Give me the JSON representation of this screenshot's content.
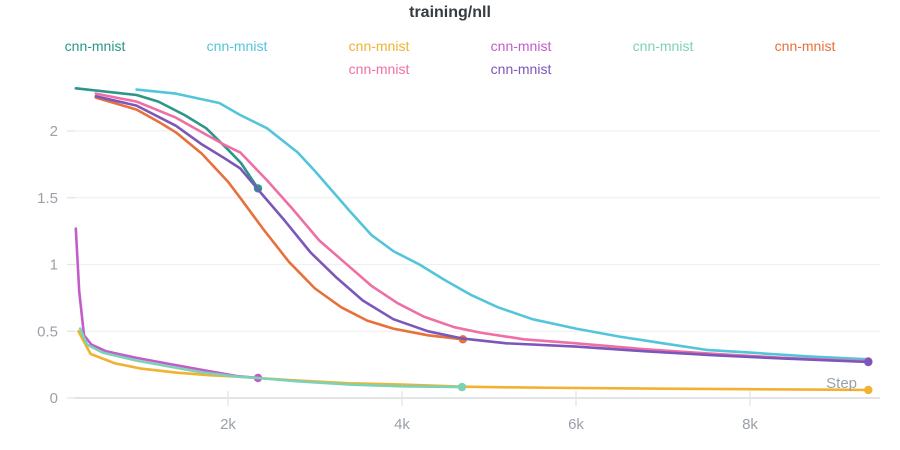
{
  "title": "training/nll",
  "step_axis_label": "Step",
  "colors": {
    "background": "#ffffff",
    "title_text": "#363b42",
    "tick_text": "#9aa1a9",
    "gridline": "#f0f0f2",
    "axis_line": "#e3e4e6"
  },
  "chart_data": {
    "type": "line",
    "title": "training/nll",
    "xlabel": "Step",
    "ylabel": "",
    "xlim": [
      0,
      9500
    ],
    "ylim": [
      0,
      2.4
    ],
    "grid": "horizontal-only",
    "legend_position": "top",
    "x_ticks": [
      {
        "step": 2000,
        "label": "2k"
      },
      {
        "step": 4000,
        "label": "4k"
      },
      {
        "step": 6000,
        "label": "6k"
      },
      {
        "step": 8000,
        "label": "8k"
      }
    ],
    "y_ticks": [
      {
        "value": 0,
        "label": "0"
      },
      {
        "value": 0.5,
        "label": "0.5"
      },
      {
        "value": 1,
        "label": "1"
      },
      {
        "value": 1.5,
        "label": "1.5"
      },
      {
        "value": 2,
        "label": "2"
      }
    ],
    "series": [
      {
        "name": "cnn-mnist",
        "color": "#2c9688",
        "end_dot": true,
        "x": [
          250,
          950,
          1200,
          1500,
          1750,
          2000,
          2150,
          2345
        ],
        "y": [
          2.32,
          2.27,
          2.22,
          2.12,
          2.02,
          1.86,
          1.76,
          1.57
        ]
      },
      {
        "name": "cnn-mnist",
        "color": "#53c5da",
        "end_dot": false,
        "x": [
          950,
          1400,
          1900,
          2140,
          2450,
          2800,
          3000,
          3200,
          3400,
          3650,
          3900,
          4200,
          4500,
          4800,
          5100,
          5500,
          6000,
          6500,
          7000,
          7500,
          8000,
          8700,
          9360
        ],
        "y": [
          2.31,
          2.28,
          2.21,
          2.12,
          2.02,
          1.84,
          1.7,
          1.55,
          1.4,
          1.22,
          1.1,
          1.0,
          0.88,
          0.77,
          0.68,
          0.59,
          0.52,
          0.46,
          0.41,
          0.36,
          0.34,
          0.31,
          0.29
        ]
      },
      {
        "name": "cnn-mnist",
        "color": "#f2b130",
        "end_dot": true,
        "x": [
          280,
          420,
          700,
          1000,
          1400,
          1800,
          2100,
          2345,
          2800,
          3400,
          4000,
          4690,
          5200,
          6000,
          7000,
          8000,
          9000,
          9360
        ],
        "y": [
          0.5,
          0.33,
          0.26,
          0.22,
          0.19,
          0.17,
          0.16,
          0.15,
          0.13,
          0.11,
          0.1,
          0.085,
          0.08,
          0.075,
          0.07,
          0.066,
          0.062,
          0.06
        ]
      },
      {
        "name": "cnn-mnist",
        "color": "#c35ccb",
        "end_dot": true,
        "x": [
          250,
          290,
          345,
          430,
          600,
          950,
          1330,
          1710,
          2100,
          2345
        ],
        "y": [
          1.27,
          0.8,
          0.47,
          0.4,
          0.35,
          0.3,
          0.255,
          0.21,
          0.165,
          0.15
        ]
      },
      {
        "name": "cnn-mnist",
        "color": "#7bd2b5",
        "end_dot": true,
        "x": [
          300,
          380,
          560,
          950,
          1330,
          1710,
          2100,
          2345,
          2800,
          3400,
          4000,
          4690
        ],
        "y": [
          0.52,
          0.4,
          0.34,
          0.28,
          0.235,
          0.19,
          0.16,
          0.15,
          0.125,
          0.1,
          0.088,
          0.082
        ]
      },
      {
        "name": "cnn-mnist",
        "color": "#e8703a",
        "end_dot": true,
        "x": [
          480,
          950,
          1200,
          1400,
          1700,
          2000,
          2140,
          2400,
          2700,
          3000,
          3300,
          3600,
          3900,
          4300,
          4700
        ],
        "y": [
          2.25,
          2.16,
          2.07,
          1.99,
          1.83,
          1.62,
          1.5,
          1.27,
          1.02,
          0.82,
          0.68,
          0.58,
          0.52,
          0.47,
          0.44
        ]
      },
      {
        "name": "cnn-mnist",
        "color": "#ef6fa5",
        "end_dot": true,
        "x": [
          480,
          950,
          1400,
          1700,
          1950,
          2140,
          2450,
          2750,
          3050,
          3350,
          3650,
          3950,
          4250,
          4600,
          4900,
          5400,
          6000,
          6800,
          7600,
          8400,
          9360
        ],
        "y": [
          2.28,
          2.22,
          2.1,
          1.99,
          1.9,
          1.84,
          1.63,
          1.41,
          1.18,
          1.01,
          0.84,
          0.71,
          0.61,
          0.53,
          0.49,
          0.44,
          0.41,
          0.365,
          0.33,
          0.3,
          0.275
        ]
      },
      {
        "name": "cnn-mnist",
        "color": "#7a57b9",
        "end_dot": true,
        "x": [
          480,
          950,
          1400,
          1700,
          1950,
          2140,
          2400,
          2650,
          2950,
          3250,
          3550,
          3900,
          4300,
          4700,
          5200,
          6000,
          6800,
          7600,
          8400,
          9360
        ],
        "y": [
          2.26,
          2.19,
          2.04,
          1.9,
          1.8,
          1.72,
          1.52,
          1.33,
          1.09,
          0.9,
          0.73,
          0.59,
          0.5,
          0.445,
          0.41,
          0.385,
          0.35,
          0.32,
          0.295,
          0.27
        ]
      }
    ]
  }
}
